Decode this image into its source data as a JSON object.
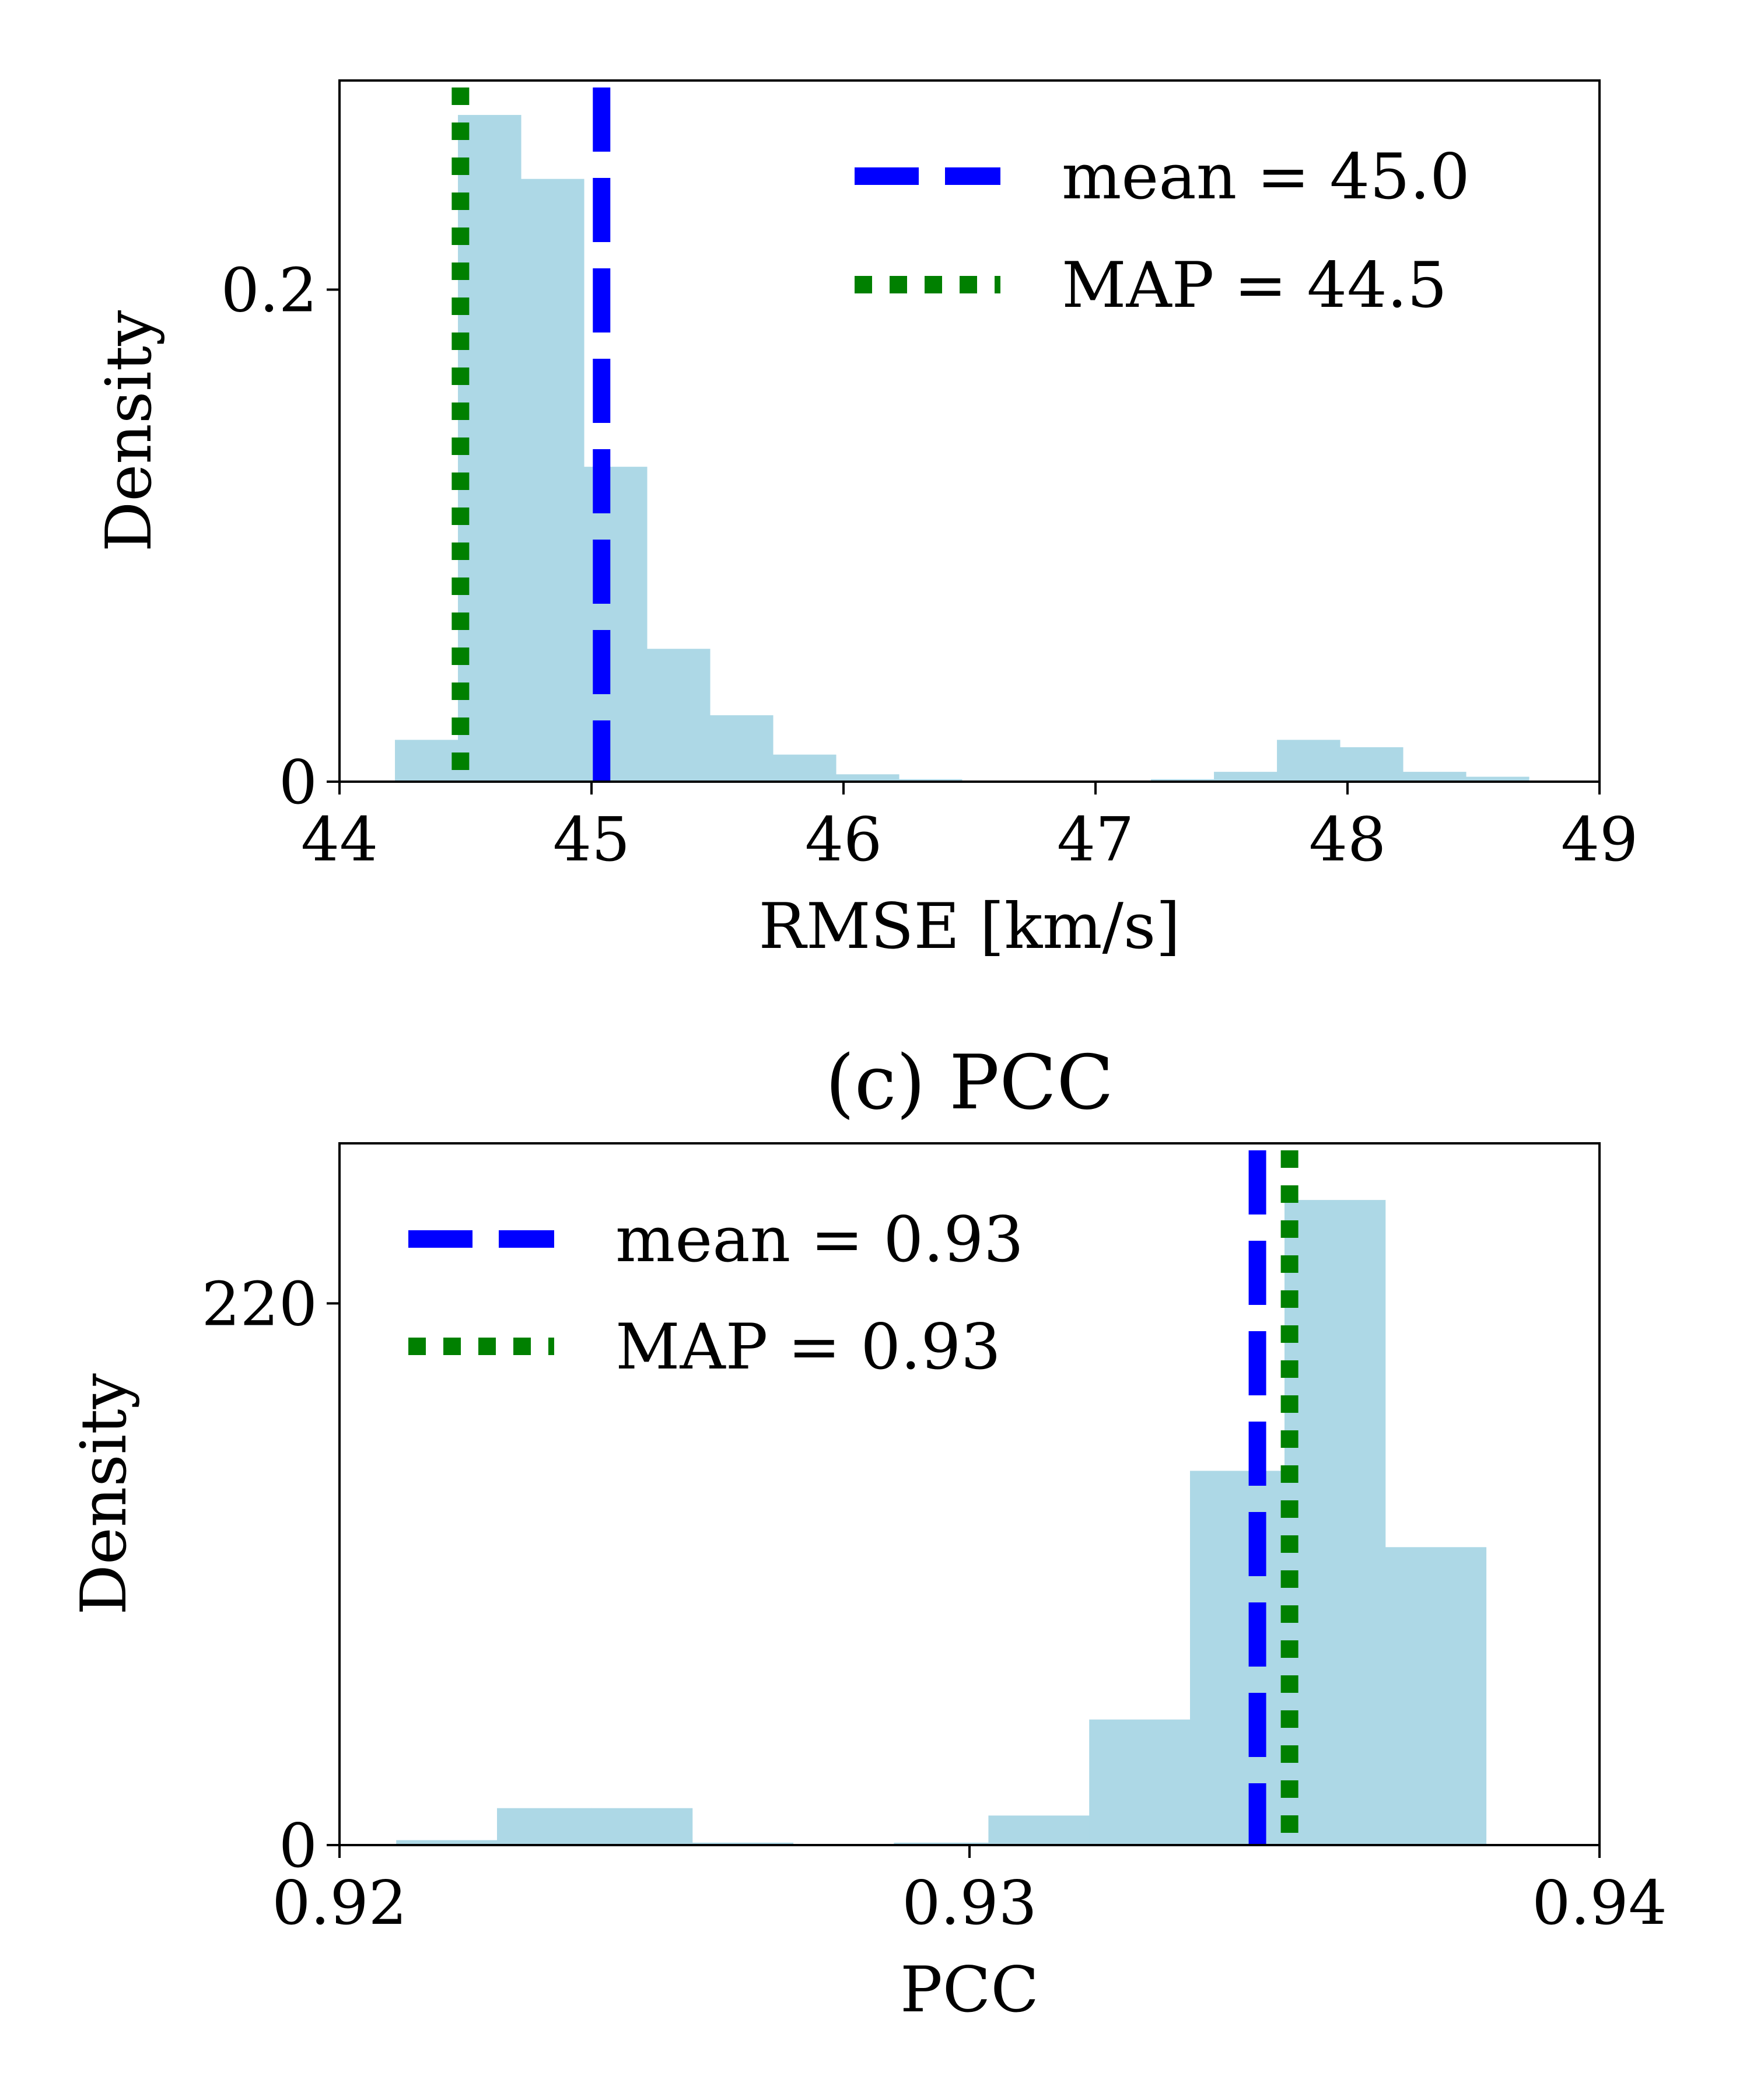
{
  "colors": {
    "hist_fill": "#add8e6",
    "mean_line": "#0000ff",
    "map_line": "#008000",
    "axes": "#000000"
  },
  "chart_data": [
    {
      "type": "bar",
      "title": "",
      "xlabel": "RMSE [km/s]",
      "ylabel": "Density",
      "xlim": [
        44,
        49
      ],
      "ylim": [
        0,
        0.285
      ],
      "xticks": [
        44,
        45,
        46,
        47,
        48,
        49
      ],
      "xtick_labels": [
        "44",
        "45",
        "46",
        "47",
        "48",
        "49"
      ],
      "yticks": [
        0,
        0.2
      ],
      "ytick_labels": [
        "0",
        "0.2"
      ],
      "bin_edges": [
        44.22,
        44.47,
        44.72,
        44.97,
        45.22,
        45.47,
        45.72,
        45.97,
        46.22,
        46.47,
        46.72,
        46.97,
        47.22,
        47.47,
        47.72,
        47.97,
        48.22,
        48.47,
        48.72
      ],
      "values": [
        0.017,
        0.271,
        0.245,
        0.128,
        0.054,
        0.027,
        0.011,
        0.003,
        0.001,
        0.0,
        0.0,
        0.0,
        0.001,
        0.004,
        0.017,
        0.014,
        0.004,
        0.002
      ],
      "mean": 45.04,
      "map": 44.48,
      "legend": {
        "position": "upper-right",
        "mean_label": "mean = 45.0",
        "map_label": "MAP = 44.5"
      }
    },
    {
      "type": "bar",
      "title": "(c) PCC",
      "xlabel": "PCC",
      "ylabel": "Density",
      "xlim": [
        0.92,
        0.94
      ],
      "ylim": [
        0,
        285
      ],
      "xticks": [
        0.92,
        0.93,
        0.94
      ],
      "xtick_labels": [
        "0.92",
        "0.93",
        "0.94"
      ],
      "yticks": [
        0,
        220
      ],
      "ytick_labels": [
        "0",
        "220"
      ],
      "bin_edges": [
        0.9209,
        0.9225,
        0.924,
        0.9256,
        0.9272,
        0.9288,
        0.9303,
        0.9319,
        0.9335,
        0.935,
        0.9366,
        0.9382
      ],
      "values": [
        2,
        15,
        15,
        1,
        0,
        1,
        12,
        51,
        152,
        262,
        121
      ],
      "mean": 0.93457,
      "map": 0.93508,
      "legend": {
        "position": "upper-left",
        "mean_label": "mean = 0.93",
        "map_label": "MAP = 0.93"
      }
    }
  ]
}
